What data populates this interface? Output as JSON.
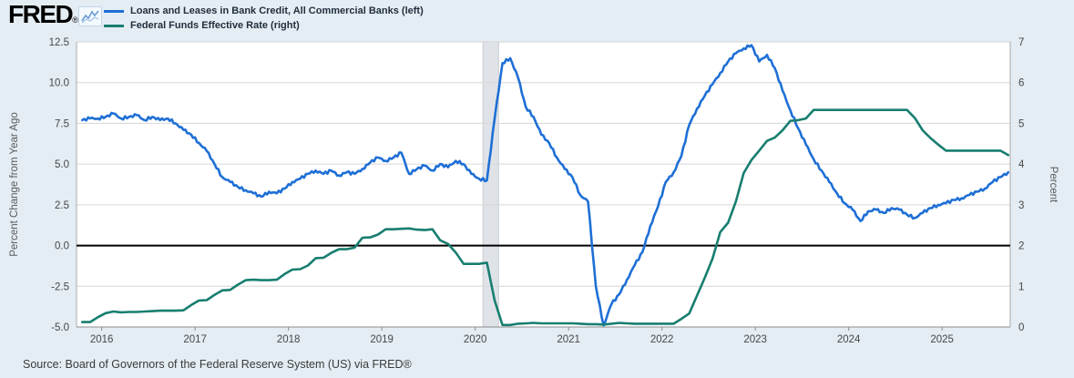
{
  "header": {
    "logo_text": "FRED",
    "registered_mark": "®",
    "sparkline_icon": "fred-sparkline-icon"
  },
  "legend": [
    {
      "label": "Loans and Leases in Bank Credit, All Commercial Banks (left)",
      "color": "#1e6fd5"
    },
    {
      "label": "Federal Funds Effective Rate (right)",
      "color": "#177e70"
    }
  ],
  "source_note": "Source: Board of Governors of the Federal Reserve System (US) via FRED®",
  "colors": {
    "background": "#e4edf4",
    "plot_background": "#ffffff",
    "gridline": "#d6d6d6",
    "plot_border": "#a8a8a8",
    "axis_line": "#8c8c8c",
    "zero_line": "#000000",
    "tick_label": "#474747",
    "axis_title": "#5a5a5a",
    "recession_band": "#dfe3e8",
    "loans_line": "#1e6fd5",
    "ffr_line": "#177e70"
  },
  "chart_data": {
    "type": "line",
    "title": "",
    "x_axis": {
      "range": [
        2015.73,
        2025.73
      ],
      "tick_years": [
        2016,
        2017,
        2018,
        2019,
        2020,
        2021,
        2022,
        2023,
        2024,
        2025
      ],
      "tick_labels": [
        "2016",
        "2017",
        "2018",
        "2019",
        "2020",
        "2021",
        "2022",
        "2023",
        "2024",
        "2025"
      ]
    },
    "left_axis": {
      "label": "Percent Change from Year Ago",
      "range": [
        -5.0,
        12.5
      ],
      "ticks": [
        12.5,
        10.0,
        7.5,
        5.0,
        2.5,
        0.0,
        -2.5,
        -5.0
      ],
      "tick_labels": [
        "12.5",
        "10.0",
        "7.5",
        "5.0",
        "2.5",
        "0.0",
        "-2.5",
        "-5.0"
      ]
    },
    "right_axis": {
      "label": "Percent",
      "range": [
        0,
        7
      ],
      "ticks": [
        7,
        6,
        5,
        4,
        3,
        2,
        1,
        0
      ],
      "tick_labels": [
        "7",
        "6",
        "5",
        "4",
        "3",
        "2",
        "1",
        "0"
      ]
    },
    "zero_line_left_value": 0.0,
    "recession_band": {
      "from": 2020.083,
      "to": 2020.25
    },
    "grid": true,
    "legend_position": "top-left",
    "series": [
      {
        "name": "Loans and Leases in Bank Credit, All Commercial Banks",
        "axis": "left",
        "color": "#1e6fd5",
        "line_width": 2.6,
        "texture": "weekly-noise",
        "start_year": 2015.7917,
        "step_years": 0.0833333,
        "values": [
          7.7,
          7.8,
          7.8,
          7.9,
          8.1,
          7.8,
          7.9,
          8.0,
          7.7,
          7.9,
          7.7,
          7.8,
          7.5,
          7.1,
          6.8,
          6.3,
          5.8,
          5.0,
          4.2,
          3.9,
          3.6,
          3.4,
          3.2,
          3.0,
          3.3,
          3.2,
          3.5,
          3.9,
          4.1,
          4.4,
          4.6,
          4.4,
          4.6,
          4.3,
          4.5,
          4.4,
          4.7,
          5.1,
          5.4,
          5.2,
          5.4,
          5.7,
          4.4,
          4.7,
          4.9,
          4.6,
          5.0,
          4.8,
          5.2,
          5.0,
          4.4,
          4.1,
          4.0,
          7.8,
          11.2,
          11.5,
          10.3,
          8.5,
          7.9,
          6.8,
          6.3,
          5.4,
          4.7,
          4.2,
          3.1,
          2.7,
          -2.5,
          -4.9,
          -3.6,
          -3.0,
          -2.1,
          -1.2,
          -0.4,
          1.2,
          2.4,
          3.9,
          4.5,
          5.5,
          7.4,
          8.4,
          9.2,
          9.9,
          10.6,
          11.3,
          11.8,
          12.1,
          12.3,
          11.3,
          11.7,
          10.9,
          9.5,
          8.3,
          7.2,
          6.2,
          5.3,
          4.6,
          3.9,
          3.2,
          2.6,
          2.2,
          1.5,
          2.1,
          2.2,
          2.0,
          2.3,
          2.2,
          1.9,
          1.7,
          2.0,
          2.3,
          2.5,
          2.6,
          2.8,
          2.9,
          3.1,
          3.3,
          3.5,
          3.9,
          4.2,
          4.5
        ]
      },
      {
        "name": "Federal Funds Effective Rate",
        "axis": "right",
        "color": "#177e70",
        "line_width": 2.6,
        "texture": "none",
        "start_year": 2015.7917,
        "step_years": 0.0833333,
        "values": [
          0.12,
          0.12,
          0.24,
          0.34,
          0.38,
          0.36,
          0.37,
          0.37,
          0.38,
          0.39,
          0.4,
          0.4,
          0.4,
          0.41,
          0.54,
          0.65,
          0.66,
          0.79,
          0.9,
          0.91,
          1.04,
          1.15,
          1.16,
          1.15,
          1.15,
          1.16,
          1.3,
          1.41,
          1.42,
          1.51,
          1.69,
          1.7,
          1.82,
          1.91,
          1.91,
          1.95,
          2.19,
          2.2,
          2.27,
          2.4,
          2.4,
          2.41,
          2.42,
          2.39,
          2.38,
          2.4,
          2.13,
          2.04,
          1.83,
          1.55,
          1.55,
          1.55,
          1.58,
          0.65,
          0.05,
          0.05,
          0.08,
          0.09,
          0.1,
          0.09,
          0.09,
          0.09,
          0.09,
          0.09,
          0.08,
          0.07,
          0.07,
          0.06,
          0.08,
          0.1,
          0.09,
          0.08,
          0.08,
          0.08,
          0.08,
          0.08,
          0.08,
          0.2,
          0.33,
          0.77,
          1.21,
          1.68,
          2.33,
          2.56,
          3.08,
          3.78,
          4.1,
          4.33,
          4.57,
          4.65,
          4.83,
          5.06,
          5.08,
          5.12,
          5.33,
          5.33,
          5.33,
          5.33,
          5.33,
          5.33,
          5.33,
          5.33,
          5.33,
          5.33,
          5.33,
          5.33,
          5.33,
          5.13,
          4.83,
          4.64,
          4.48,
          4.33,
          4.33,
          4.33,
          4.33,
          4.33,
          4.33,
          4.33,
          4.33,
          4.22
        ]
      }
    ]
  }
}
